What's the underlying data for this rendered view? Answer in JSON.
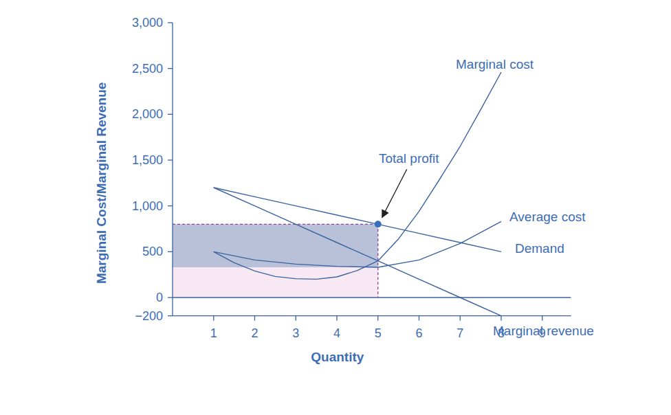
{
  "chart_data": {
    "type": "line",
    "x_label": "Quantity",
    "y_label": "Marginal Cost/Marginal Revenue",
    "color": "#3a63a0",
    "xlim": [
      0,
      9.7
    ],
    "xticks": [
      1,
      2,
      3,
      4,
      5,
      6,
      7,
      8,
      9
    ],
    "ylim": [
      -200,
      3000
    ],
    "yticks": [
      {
        "value": -200,
        "label": "−200"
      },
      0,
      500,
      {
        "value": 1000,
        "label": "1,000"
      },
      {
        "value": 1500,
        "label": "1,500"
      },
      {
        "value": 2000,
        "label": "2,000"
      },
      {
        "value": 2500,
        "label": "2,500"
      },
      {
        "value": 3000,
        "label": "3,000"
      }
    ],
    "grid": false,
    "series": [
      {
        "name": "Marginal cost",
        "x": [
          1,
          1.5,
          2,
          2.5,
          3,
          3.5,
          4,
          4.5,
          5,
          5.5,
          6,
          6.5,
          7,
          7.5,
          8
        ],
        "values": [
          500,
          380,
          290,
          230,
          205,
          200,
          225,
          295,
          400,
          640,
          940,
          1290,
          1650,
          2050,
          2460
        ]
      },
      {
        "name": "Average cost",
        "x": [
          1,
          2,
          3,
          4,
          5,
          6,
          7,
          8
        ],
        "values": [
          500,
          410,
          365,
          340,
          330,
          410,
          590,
          830
        ]
      },
      {
        "name": "Demand",
        "x": [
          1,
          2,
          3,
          4,
          5,
          6,
          7,
          8
        ],
        "values": [
          1200,
          1100,
          1000,
          900,
          800,
          700,
          600,
          500
        ]
      },
      {
        "name": "Marginal revenue",
        "x": [
          1,
          2,
          3,
          4,
          5,
          6,
          7,
          8
        ],
        "values": [
          1200,
          1000,
          800,
          600,
          400,
          200,
          0,
          -200
        ]
      }
    ],
    "optimum": {
      "label": "Total profit",
      "quantity": 5,
      "price": 800,
      "average_cost": 330
    }
  }
}
